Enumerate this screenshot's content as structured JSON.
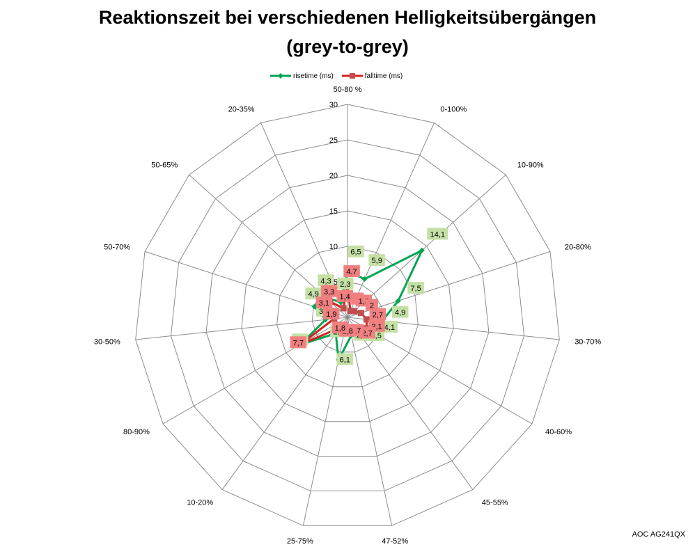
{
  "chart_data": {
    "type": "radar",
    "title_line1": "Reaktionszeit bei verschiedenen Helligkeitsübergängen",
    "title_line2": "(grey-to-grey)",
    "categories": [
      "50-80 %",
      "0-100%",
      "10-90%",
      "20-80%",
      "30-70%",
      "40-60%",
      "45-55%",
      "47-52%",
      "25-75%",
      "10-20%",
      "80-90%",
      "30-50%",
      "50-70%",
      "50-65%",
      "20-35%"
    ],
    "axis_ticks": [
      "0",
      "5",
      "10",
      "15",
      "20",
      "25",
      "30"
    ],
    "rmax": 30,
    "grid": true,
    "legend_position": "top",
    "series": [
      {
        "name": "risetime (ms)",
        "color": "#00A651",
        "marker": "diamond",
        "label_bg": "#C5E0A5",
        "values": [
          6.5,
          5.9,
          14.1,
          7.5,
          4.9,
          4.1,
          3.5,
          2.6,
          6.1,
          2.8,
          7.7,
          3.1,
          4.9,
          4.3,
          2.3
        ],
        "labels": [
          "6,5",
          "5,9",
          "14,1",
          "7,5",
          "4,9",
          "4,1",
          "3,5",
          "2,6",
          "6,1",
          "2,8",
          "7,7",
          "3,1",
          "4,9",
          "4,3",
          "2,3"
        ]
      },
      {
        "name": "falltime (ms)",
        "color": "#D62020",
        "marker": "square",
        "marker_color": "#C0504D",
        "label_bg": "#F08080",
        "values": [
          4.7,
          1.0,
          1.3,
          2.0,
          2.7,
          3.1,
          2.7,
          1.7,
          1.8,
          1.8,
          7.7,
          1.9,
          3.1,
          3.3,
          1.4
        ],
        "labels": [
          "4,7",
          "1",
          "1,3",
          "2",
          "2,7",
          "3,1",
          "2,7",
          "1,7",
          "1,8",
          "1,8",
          "7,7",
          "1,9",
          "3,1",
          "3,3",
          "1,4"
        ]
      }
    ]
  },
  "footer": {
    "credit": "AOC AG241QX"
  }
}
